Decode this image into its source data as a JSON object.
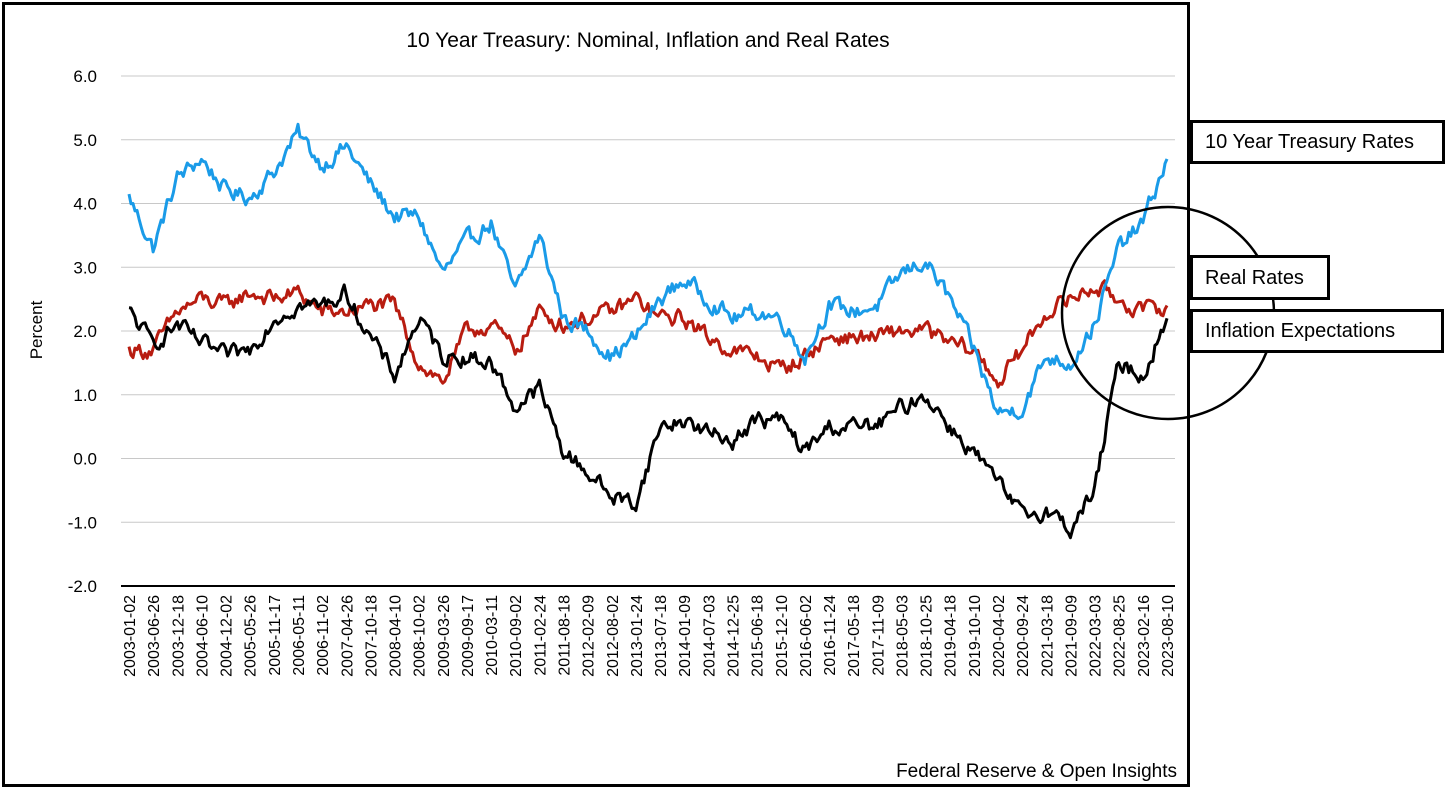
{
  "chart_data": {
    "type": "line",
    "title": "10 Year Treasury: Nominal, Inflation and Real Rates",
    "ylabel": "Percent",
    "xlabel": "",
    "source_note": "Federal Reserve & Open Insights",
    "ylim": [
      -2.0,
      6.0
    ],
    "yticks": [
      "6.0",
      "5.0",
      "4.0",
      "3.0",
      "2.0",
      "1.0",
      "0.0",
      "-1.0",
      "-2.0"
    ],
    "grid": true,
    "legend": "callout boxes at right",
    "x": [
      "2003-01-02",
      "2003-06-26",
      "2003-12-18",
      "2004-06-10",
      "2004-12-02",
      "2005-05-26",
      "2005-11-17",
      "2006-05-11",
      "2006-11-02",
      "2007-04-26",
      "2007-10-18",
      "2008-04-10",
      "2008-10-02",
      "2009-03-26",
      "2009-09-17",
      "2010-03-11",
      "2010-09-02",
      "2011-02-24",
      "2011-08-18",
      "2012-02-09",
      "2012-08-02",
      "2013-01-24",
      "2013-07-18",
      "2014-01-09",
      "2014-07-03",
      "2014-12-25",
      "2015-06-18",
      "2015-12-10",
      "2016-06-02",
      "2016-11-24",
      "2017-05-18",
      "2017-11-09",
      "2018-05-03",
      "2018-10-25",
      "2019-04-18",
      "2019-10-10",
      "2020-04-02",
      "2020-09-24",
      "2021-03-18",
      "2021-09-09",
      "2022-03-03",
      "2022-08-25",
      "2023-02-16",
      "2023-08-10"
    ],
    "series": [
      {
        "name": "10 Year Treasury Rates",
        "color": "#1a9be8",
        "values": [
          4.1,
          3.3,
          4.4,
          4.7,
          4.2,
          4.1,
          4.5,
          5.1,
          4.6,
          4.9,
          4.3,
          3.8,
          3.8,
          2.9,
          3.4,
          3.7,
          2.6,
          3.5,
          2.2,
          2.0,
          1.6,
          1.9,
          2.5,
          2.8,
          2.5,
          2.2,
          2.3,
          2.2,
          1.6,
          2.4,
          2.3,
          2.4,
          2.9,
          3.1,
          2.5,
          1.7,
          0.7,
          0.8,
          1.6,
          1.5,
          2.1,
          3.3,
          3.7,
          4.7
        ]
      },
      {
        "name": "Real Rates",
        "color": "#b81c10",
        "values": [
          1.7,
          1.7,
          2.3,
          2.5,
          2.4,
          2.6,
          2.5,
          2.6,
          2.3,
          2.3,
          2.4,
          2.4,
          1.5,
          1.2,
          2.0,
          2.1,
          1.7,
          2.3,
          2.1,
          2.2,
          2.3,
          2.5,
          2.2,
          2.2,
          1.9,
          1.7,
          1.6,
          1.4,
          1.6,
          1.9,
          1.9,
          1.9,
          2.0,
          2.0,
          1.8,
          1.7,
          1.2,
          1.7,
          2.3,
          2.5,
          2.7,
          2.5,
          2.3,
          2.4
        ]
      },
      {
        "name": "Inflation Expectations",
        "color": "#000000",
        "values": [
          2.3,
          1.8,
          2.1,
          1.8,
          1.6,
          1.7,
          2.2,
          2.4,
          2.4,
          2.6,
          1.9,
          1.3,
          2.2,
          1.6,
          1.6,
          1.5,
          0.8,
          1.1,
          0.1,
          -0.2,
          -0.6,
          -0.7,
          0.5,
          0.6,
          0.4,
          0.3,
          0.6,
          0.6,
          0.1,
          0.5,
          0.5,
          0.5,
          0.8,
          1.0,
          0.5,
          0.1,
          -0.4,
          -0.9,
          -0.8,
          -1.1,
          -0.5,
          1.5,
          1.3,
          2.2
        ]
      }
    ]
  }
}
